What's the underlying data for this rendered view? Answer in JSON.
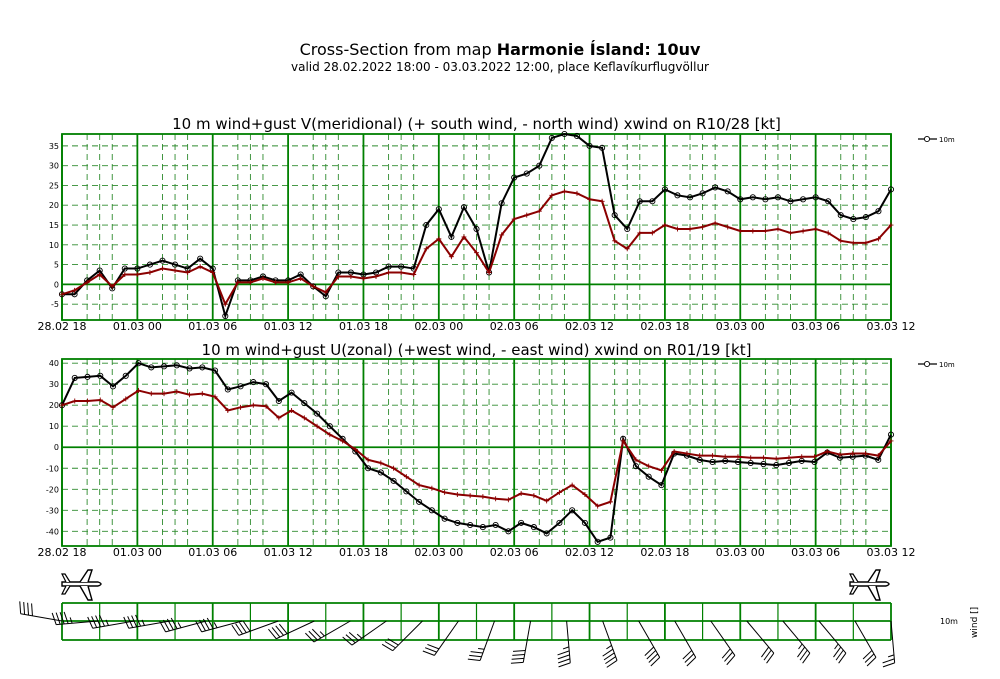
{
  "header": {
    "title_prefix": "Cross-Section from map",
    "title_bold": "Harmonie Ísland: 10uv",
    "subtitle": "valid 28.02.2022 18:00 - 03.03.2022 12:00, place Keflavíkurflugvöllur"
  },
  "colors": {
    "grid_major": "#008000",
    "grid_minor": "#2e8b2e",
    "wind_line": "#000000",
    "gust_line": "#8b0000",
    "barb": "#000000"
  },
  "x_tick_labels": [
    "28.02 18",
    "01.03 00",
    "01.03 06",
    "01.03 12",
    "01.03 18",
    "02.03 00",
    "02.03 06",
    "02.03 12",
    "02.03 18",
    "03.03 00",
    "03.03 06",
    "03.03 12"
  ],
  "chart_data": [
    {
      "type": "line",
      "title": "10 m wind+gust V(meridional) (+ south wind, - north wind) xwind on R10/28 [kt]",
      "legend": "10m",
      "legend_position": "top-right",
      "grid": true,
      "xlim": [
        "28.02 18",
        "03.03 12"
      ],
      "ylim": [
        -9,
        38
      ],
      "yticks": [
        -5,
        0,
        5,
        10,
        15,
        20,
        25,
        30,
        35
      ],
      "series": [
        {
          "values": [
            -2.5,
            -2.5,
            1,
            3.5,
            -1,
            4,
            4,
            5,
            6,
            5,
            4,
            6.5,
            4,
            -8,
            1,
            1,
            2,
            1,
            1,
            2.5,
            -0.5,
            -3,
            3,
            3,
            2.5,
            3,
            4.5,
            4.5,
            4,
            15,
            19,
            12,
            19.5,
            14,
            3,
            20.5,
            27,
            28,
            30,
            37,
            38,
            37.5,
            35,
            34.5,
            17.5,
            14,
            21,
            21,
            24,
            22.5,
            22,
            23,
            24.5,
            23.5,
            21.5,
            22,
            21.5,
            22,
            21,
            21.5,
            22,
            21,
            17.5,
            16.5,
            17,
            18.5,
            24
          ]
        },
        {
          "values": [
            -2.5,
            -1.5,
            0.5,
            2.5,
            -0.5,
            2.5,
            2.5,
            3,
            4,
            3.5,
            3,
            4.5,
            3,
            -5,
            0.5,
            0.5,
            1.5,
            0.5,
            0.5,
            1.5,
            -0.5,
            -2,
            2,
            2,
            1.5,
            2,
            3,
            3,
            2.5,
            9,
            11.5,
            7,
            12,
            8,
            3,
            12.5,
            16.5,
            17.5,
            18.5,
            22.5,
            23.5,
            23,
            21.5,
            21,
            11,
            9,
            13,
            13,
            15,
            14,
            14,
            14.5,
            15.5,
            14.5,
            13.5,
            13.5,
            13.5,
            14,
            13,
            13.5,
            14,
            13,
            11,
            10.5,
            10.5,
            11.5,
            15
          ]
        }
      ]
    },
    {
      "type": "line",
      "title": "10 m wind+gust U(zonal) (+west wind, - east wind) xwind on R01/19 [kt]",
      "legend": "10m",
      "legend_position": "top-right",
      "grid": true,
      "xlim": [
        "28.02 18",
        "03.03 12"
      ],
      "ylim": [
        -47,
        42
      ],
      "yticks": [
        -40,
        -30,
        -20,
        -10,
        0,
        10,
        20,
        30,
        40
      ],
      "series": [
        {
          "values": [
            20,
            33,
            33.5,
            34,
            29,
            34,
            40,
            38,
            38.5,
            39,
            37.5,
            38,
            36.5,
            27.5,
            29,
            31,
            30,
            22,
            26,
            21,
            16,
            10,
            4,
            -2,
            -10,
            -12,
            -16,
            -21,
            -26,
            -30,
            -34,
            -36,
            -37,
            -38,
            -37,
            -40,
            -36,
            -38,
            -41,
            -36,
            -30,
            -36,
            -45,
            -43,
            4,
            -9,
            -14,
            -18,
            -3,
            -4,
            -6,
            -7,
            -6.5,
            -7,
            -7.5,
            -8,
            -8.5,
            -7.5,
            -6.5,
            -7,
            -2.5,
            -5,
            -4.5,
            -4,
            -6,
            6
          ]
        },
        {
          "values": [
            20,
            22,
            22,
            22.5,
            19,
            23,
            27,
            25.5,
            25.5,
            26.5,
            25,
            25.5,
            24,
            17.5,
            19,
            20,
            19.5,
            14,
            17.5,
            14,
            10,
            6,
            3,
            -1,
            -6,
            -7.5,
            -10,
            -14,
            -18,
            -19.5,
            -21.5,
            -22.5,
            -23,
            -23.5,
            -24.5,
            -25,
            -22,
            -23,
            -25.5,
            -21.5,
            -18,
            -22.5,
            -28,
            -26,
            3,
            -6,
            -9,
            -11,
            -2,
            -3,
            -4,
            -4,
            -4.5,
            -4.5,
            -5,
            -5,
            -5.5,
            -5,
            -4.5,
            -4.5,
            -2,
            -3.5,
            -3,
            -3,
            -4,
            3
          ]
        }
      ]
    }
  ],
  "barb_panel": {
    "level_label": "10m",
    "axis_label": "wind []",
    "barbs": [
      {
        "dir": 280,
        "speed": 40
      },
      {
        "dir": 265,
        "speed": 45
      },
      {
        "dir": 260,
        "speed": 45
      },
      {
        "dir": 260,
        "speed": 45
      },
      {
        "dir": 255,
        "speed": 45
      },
      {
        "dir": 255,
        "speed": 45
      },
      {
        "dir": 250,
        "speed": 40
      },
      {
        "dir": 245,
        "speed": 40
      },
      {
        "dir": 240,
        "speed": 35
      },
      {
        "dir": 235,
        "speed": 35
      },
      {
        "dir": 225,
        "speed": 30
      },
      {
        "dir": 215,
        "speed": 30
      },
      {
        "dir": 200,
        "speed": 35
      },
      {
        "dir": 190,
        "speed": 40
      },
      {
        "dir": 175,
        "speed": 45
      },
      {
        "dir": 160,
        "speed": 45
      },
      {
        "dir": 150,
        "speed": 40
      },
      {
        "dir": 150,
        "speed": 30
      },
      {
        "dir": 145,
        "speed": 30
      },
      {
        "dir": 140,
        "speed": 30
      },
      {
        "dir": 140,
        "speed": 35
      },
      {
        "dir": 140,
        "speed": 35
      },
      {
        "dir": 150,
        "speed": 30
      },
      {
        "dir": 175,
        "speed": 25
      }
    ]
  }
}
